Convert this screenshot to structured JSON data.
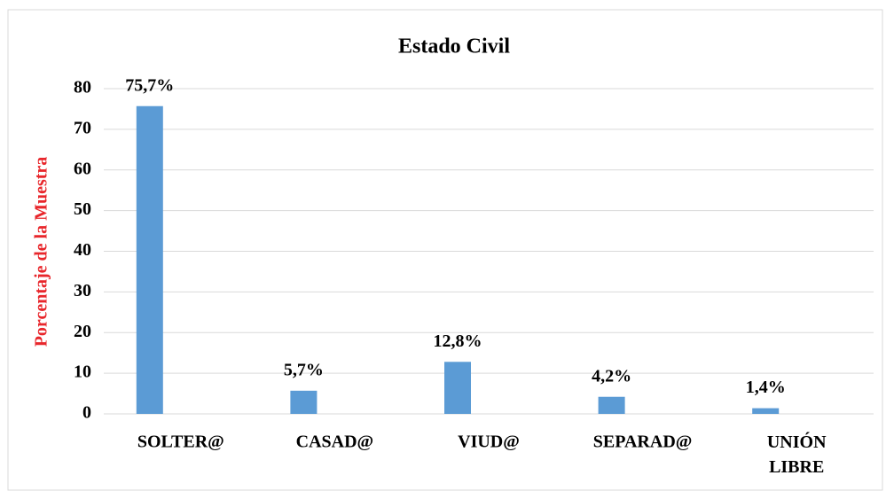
{
  "chart_data": {
    "type": "bar",
    "title": "Estado Civil",
    "y_label": "Porcentaje de la Muestra",
    "categories": [
      "SOLTER@",
      "CASAD@",
      "VIUD@",
      "SEPARAD@",
      "UNIÓN LIBRE"
    ],
    "values": [
      75.7,
      5.7,
      12.8,
      4.2,
      1.4
    ],
    "value_labels": [
      "75,7%",
      "5,7%",
      "12,8%",
      "4,2%",
      "1,4%"
    ],
    "color": "#5b9bd5",
    "ylim": [
      0,
      80
    ],
    "yticks": [
      0,
      10,
      20,
      30,
      40,
      50,
      60,
      70,
      80
    ],
    "grid": true
  }
}
